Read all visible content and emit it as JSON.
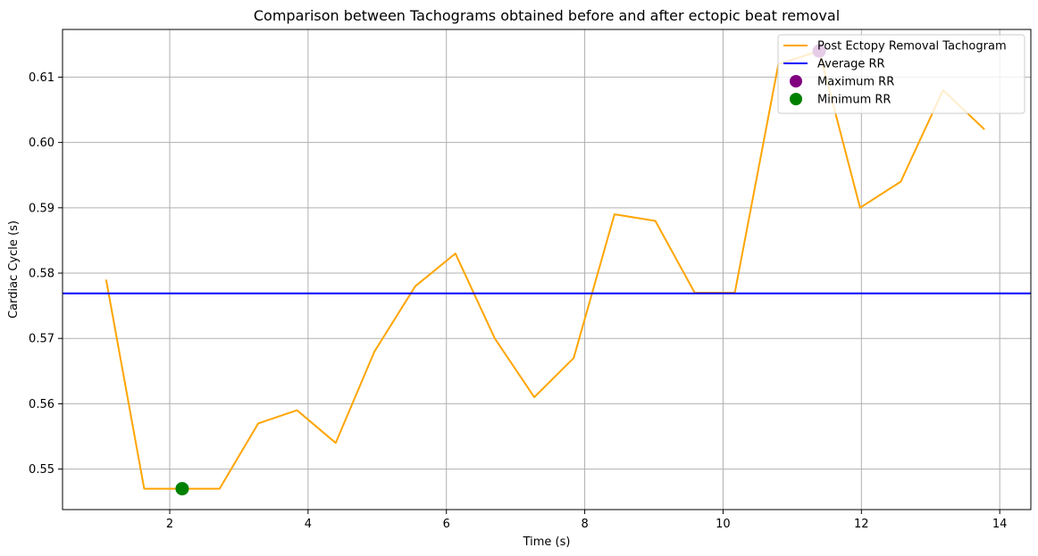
{
  "chart_data": {
    "type": "line",
    "title": "Comparison between Tachograms obtained before and after ectopic beat removal",
    "xlabel": "Time (s)",
    "ylabel": "Cardiac Cycle (s)",
    "xlim": [
      0.45,
      14.45
    ],
    "ylim": [
      0.5438,
      0.6173
    ],
    "xticks": [
      2,
      4,
      6,
      8,
      10,
      12,
      14
    ],
    "yticks": [
      0.55,
      0.56,
      0.57,
      0.58,
      0.59,
      0.6,
      0.61
    ],
    "xtick_labels": [
      "2",
      "4",
      "6",
      "8",
      "10",
      "12",
      "14"
    ],
    "ytick_labels": [
      "0.55",
      "0.56",
      "0.57",
      "0.58",
      "0.59",
      "0.60",
      "0.61"
    ],
    "grid": true,
    "legend_position": "top-right",
    "series": [
      {
        "name": "Post Ectopy Removal Tachogram",
        "kind": "line",
        "color": "#FFA500",
        "x": [
          1.08,
          1.63,
          2.18,
          2.72,
          3.28,
          3.84,
          4.4,
          4.96,
          5.55,
          6.13,
          6.7,
          7.27,
          7.84,
          8.43,
          9.02,
          9.59,
          10.17,
          10.8,
          11.39,
          11.98,
          12.57,
          13.18,
          13.78
        ],
        "y": [
          0.579,
          0.547,
          0.547,
          0.547,
          0.557,
          0.559,
          0.554,
          0.568,
          0.578,
          0.583,
          0.57,
          0.561,
          0.567,
          0.589,
          0.588,
          0.577,
          0.577,
          0.612,
          0.614,
          0.59,
          0.594,
          0.608,
          0.602
        ]
      },
      {
        "name": "Average RR",
        "kind": "hline",
        "color": "#0000FF",
        "y": 0.5769
      },
      {
        "name": "Maximum RR",
        "kind": "marker",
        "color": "#800080",
        "x": 11.39,
        "y": 0.614
      },
      {
        "name": "Minimum RR",
        "kind": "marker",
        "color": "#008000",
        "x": 2.18,
        "y": 0.547
      }
    ]
  }
}
